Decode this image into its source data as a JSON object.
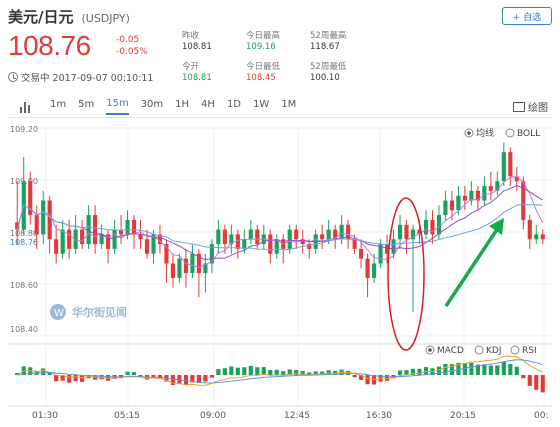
{
  "header": {
    "title": "美元/日元",
    "symbol": "(USDJPY)",
    "add_button": "+ 自选"
  },
  "quote": {
    "price": "108.76",
    "change": "-0.05",
    "change_pct": "-0.05%",
    "status": "交易中 2017-09-07 00:10:11"
  },
  "stats": {
    "prev_close_label": "昨收",
    "prev_close": "108.81",
    "open_label": "今开",
    "open": "108.81",
    "high_label": "今日最高",
    "high": "109.16",
    "low_label": "今日最低",
    "low": "108.45",
    "w52_high_label": "52周最高",
    "w52_high": "118.67",
    "w52_low_label": "52周最低",
    "w52_low": "100.10"
  },
  "toolbar": {
    "timeframes": [
      "1m",
      "5m",
      "15m",
      "30m",
      "1H",
      "4H",
      "1D",
      "1W",
      "1M"
    ],
    "active_index": 2,
    "draw_label": "绘图"
  },
  "indicators": {
    "main": [
      "均线",
      "BOLL"
    ],
    "main_selected": 0,
    "sub": [
      "MACD",
      "KDJ",
      "RSI"
    ],
    "sub_selected": 0
  },
  "watermark": "华尔街见闻",
  "chart_data": {
    "type": "candlestick",
    "y_ticks": [
      "109.20",
      "109.00",
      "108.80",
      "108.60",
      "108.40"
    ],
    "current_price_label": "108.76",
    "x_ticks": [
      "01:30",
      "05:15",
      "09:00",
      "12:45",
      "16:30",
      "20:15",
      "00:"
    ],
    "ylim": [
      108.36,
      109.22
    ],
    "candles": [
      [
        108.83,
        108.8,
        109.0,
        108.74
      ],
      [
        108.8,
        109.0,
        109.1,
        108.78
      ],
      [
        109.0,
        108.86,
        109.04,
        108.82
      ],
      [
        108.86,
        108.78,
        108.9,
        108.72
      ],
      [
        108.78,
        108.92,
        108.96,
        108.74
      ],
      [
        108.92,
        108.76,
        108.94,
        108.7
      ],
      [
        108.76,
        108.7,
        108.82,
        108.66
      ],
      [
        108.7,
        108.8,
        108.84,
        108.68
      ],
      [
        108.8,
        108.72,
        108.84,
        108.68
      ],
      [
        108.72,
        108.8,
        108.86,
        108.7
      ],
      [
        108.8,
        108.74,
        108.84,
        108.72
      ],
      [
        108.74,
        108.86,
        108.9,
        108.72
      ],
      [
        108.86,
        108.74,
        108.9,
        108.7
      ],
      [
        108.74,
        108.78,
        108.82,
        108.72
      ],
      [
        108.78,
        108.72,
        108.8,
        108.66
      ],
      [
        108.72,
        108.8,
        108.84,
        108.7
      ],
      [
        108.8,
        108.78,
        108.86,
        108.74
      ],
      [
        108.78,
        108.84,
        108.88,
        108.76
      ],
      [
        108.84,
        108.78,
        108.86,
        108.72
      ],
      [
        108.78,
        108.76,
        108.84,
        108.72
      ],
      [
        108.76,
        108.7,
        108.8,
        108.68
      ],
      [
        108.7,
        108.78,
        108.8,
        108.66
      ],
      [
        108.78,
        108.74,
        108.82,
        108.7
      ],
      [
        108.74,
        108.66,
        108.76,
        108.58
      ],
      [
        108.66,
        108.6,
        108.7,
        108.56
      ],
      [
        108.6,
        108.68,
        108.7,
        108.58
      ],
      [
        108.68,
        108.62,
        108.72,
        108.56
      ],
      [
        108.62,
        108.7,
        108.74,
        108.6
      ],
      [
        108.7,
        108.62,
        108.72,
        108.52
      ],
      [
        108.62,
        108.66,
        108.7,
        108.54
      ],
      [
        108.66,
        108.74,
        108.76,
        108.62
      ],
      [
        108.74,
        108.8,
        108.84,
        108.7
      ],
      [
        108.8,
        108.74,
        108.82,
        108.7
      ],
      [
        108.74,
        108.78,
        108.82,
        108.7
      ],
      [
        108.78,
        108.72,
        108.8,
        108.68
      ],
      [
        108.72,
        108.76,
        108.8,
        108.7
      ],
      [
        108.76,
        108.8,
        108.84,
        108.74
      ],
      [
        108.8,
        108.74,
        108.82,
        108.72
      ],
      [
        108.74,
        108.78,
        108.82,
        108.72
      ],
      [
        108.78,
        108.7,
        108.8,
        108.66
      ],
      [
        108.7,
        108.76,
        108.78,
        108.68
      ],
      [
        108.76,
        108.72,
        108.78,
        108.66
      ],
      [
        108.72,
        108.8,
        108.82,
        108.7
      ],
      [
        108.8,
        108.76,
        108.82,
        108.72
      ],
      [
        108.76,
        108.74,
        108.8,
        108.7
      ],
      [
        108.74,
        108.72,
        108.76,
        108.68
      ],
      [
        108.72,
        108.78,
        108.8,
        108.7
      ],
      [
        108.78,
        108.76,
        108.82,
        108.72
      ],
      [
        108.76,
        108.8,
        108.84,
        108.74
      ],
      [
        108.8,
        108.76,
        108.82,
        108.72
      ],
      [
        108.76,
        108.82,
        108.86,
        108.74
      ],
      [
        108.82,
        108.76,
        108.84,
        108.72
      ],
      [
        108.76,
        108.72,
        108.78,
        108.7
      ],
      [
        108.72,
        108.68,
        108.76,
        108.64
      ],
      [
        108.68,
        108.6,
        108.7,
        108.52
      ],
      [
        108.6,
        108.66,
        108.7,
        108.58
      ],
      [
        108.66,
        108.74,
        108.76,
        108.64
      ],
      [
        108.74,
        108.7,
        108.78,
        108.66
      ],
      [
        108.7,
        108.76,
        108.8,
        108.68
      ],
      [
        108.76,
        108.82,
        108.86,
        108.72
      ],
      [
        108.82,
        108.76,
        108.84,
        108.7
      ],
      [
        108.76,
        108.8,
        108.82,
        108.46
      ],
      [
        108.8,
        108.78,
        108.84,
        108.74
      ],
      [
        108.78,
        108.84,
        108.88,
        108.76
      ],
      [
        108.84,
        108.78,
        108.88,
        108.74
      ],
      [
        108.78,
        108.86,
        108.9,
        108.76
      ],
      [
        108.86,
        108.92,
        108.96,
        108.84
      ],
      [
        108.92,
        108.88,
        108.96,
        108.84
      ],
      [
        108.88,
        108.94,
        108.98,
        108.86
      ],
      [
        108.94,
        108.92,
        108.98,
        108.88
      ],
      [
        108.92,
        108.96,
        109.0,
        108.9
      ],
      [
        108.96,
        108.92,
        108.98,
        108.88
      ],
      [
        108.92,
        108.98,
        109.02,
        108.9
      ],
      [
        108.98,
        108.96,
        109.04,
        108.92
      ],
      [
        108.96,
        109.0,
        109.04,
        108.94
      ],
      [
        109.0,
        109.12,
        109.16,
        108.98
      ],
      [
        109.12,
        109.02,
        109.14,
        108.98
      ],
      [
        109.02,
        109.0,
        109.06,
        108.96
      ],
      [
        109.0,
        108.84,
        109.02,
        108.8
      ],
      [
        108.84,
        108.76,
        108.86,
        108.72
      ],
      [
        108.76,
        108.78,
        108.82,
        108.74
      ],
      [
        108.78,
        108.76,
        108.8,
        108.74
      ]
    ]
  }
}
